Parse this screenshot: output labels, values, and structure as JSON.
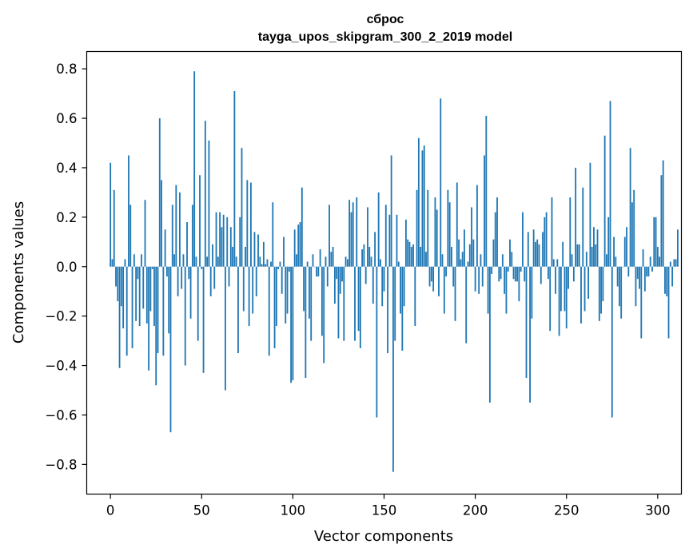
{
  "chart_data": {
    "type": "bar",
    "title": "сброс",
    "subtitle": "tayga_upos_skipgram_300_2_2019 model",
    "xlabel": "Vector components",
    "ylabel": "Components values",
    "xlim": [
      -13,
      313
    ],
    "ylim": [
      -0.92,
      0.87
    ],
    "xticks": [
      0,
      50,
      100,
      150,
      200,
      250,
      300
    ],
    "yticks": [
      -0.8,
      -0.6,
      -0.4,
      -0.2,
      0.0,
      0.2,
      0.4,
      0.6,
      0.8
    ],
    "ytick_labels": [
      "−0.8",
      "−0.6",
      "−0.4",
      "−0.2",
      "0.0",
      "0.2",
      "0.4",
      "0.6",
      "0.8"
    ],
    "bar_color": "#1f77b4",
    "grid": false,
    "values": [
      0.42,
      0.03,
      0.31,
      -0.08,
      -0.14,
      -0.41,
      -0.16,
      -0.25,
      0.03,
      -0.36,
      0.45,
      0.25,
      -0.33,
      0.05,
      -0.22,
      -0.05,
      -0.24,
      0.05,
      -0.17,
      0.27,
      -0.23,
      -0.42,
      -0.18,
      -0.01,
      -0.24,
      -0.48,
      -0.35,
      0.6,
      0.35,
      -0.36,
      0.15,
      -0.04,
      -0.27,
      -0.67,
      0.25,
      0.05,
      0.33,
      -0.12,
      0.3,
      -0.09,
      0.05,
      -0.4,
      0.18,
      -0.05,
      -0.21,
      0.25,
      0.79,
      0.04,
      -0.3,
      0.37,
      -0.01,
      -0.43,
      0.59,
      0.04,
      0.51,
      -0.12,
      0.09,
      -0.09,
      0.22,
      0.04,
      0.22,
      0.16,
      0.21,
      -0.5,
      0.2,
      -0.08,
      0.16,
      0.08,
      0.71,
      0.04,
      -0.35,
      0.2,
      0.48,
      -0.18,
      0.08,
      0.35,
      -0.24,
      0.34,
      -0.19,
      0.14,
      -0.12,
      0.13,
      0.04,
      0.01,
      0.1,
      0.01,
      0.03,
      -0.36,
      0.02,
      0.26,
      -0.33,
      -0.24,
      -0.01,
      0.02,
      -0.11,
      0.12,
      -0.23,
      -0.19,
      -0.02,
      -0.47,
      -0.46,
      0.15,
      0.05,
      0.17,
      0.18,
      0.32,
      -0.18,
      -0.45,
      0.02,
      -0.21,
      -0.3,
      0.05,
      0.0,
      -0.04,
      -0.04,
      0.07,
      -0.28,
      -0.39,
      0.04,
      -0.08,
      0.25,
      0.06,
      0.08,
      -0.15,
      -0.05,
      -0.29,
      -0.11,
      -0.06,
      -0.3,
      0.04,
      0.03,
      0.27,
      0.22,
      0.26,
      -0.3,
      0.28,
      -0.26,
      -0.33,
      0.07,
      0.09,
      -0.07,
      0.24,
      0.08,
      0.04,
      -0.15,
      0.14,
      -0.61,
      0.3,
      0.03,
      -0.16,
      -0.1,
      0.25,
      -0.35,
      0.21,
      0.45,
      -0.83,
      -0.3,
      0.21,
      0.02,
      -0.19,
      -0.34,
      -0.16,
      0.19,
      0.11,
      0.1,
      0.08,
      0.09,
      -0.24,
      0.31,
      0.52,
      0.08,
      0.47,
      0.49,
      0.06,
      0.31,
      -0.08,
      -0.06,
      -0.1,
      0.28,
      0.23,
      -0.12,
      0.68,
      0.05,
      -0.19,
      -0.04,
      0.31,
      0.26,
      0.08,
      -0.08,
      -0.22,
      0.34,
      0.11,
      0.03,
      0.06,
      0.15,
      -0.31,
      0.02,
      0.09,
      0.24,
      0.11,
      -0.1,
      0.33,
      -0.11,
      0.05,
      -0.08,
      0.45,
      0.61,
      -0.19,
      -0.55,
      -0.03,
      0.11,
      0.22,
      0.28,
      -0.06,
      -0.05,
      0.05,
      -0.11,
      -0.19,
      -0.02,
      0.11,
      0.06,
      -0.05,
      -0.06,
      -0.06,
      -0.14,
      -0.02,
      0.22,
      -0.06,
      -0.45,
      0.14,
      -0.55,
      -0.21,
      0.15,
      0.1,
      0.11,
      0.09,
      -0.07,
      0.14,
      0.2,
      0.22,
      -0.05,
      -0.26,
      0.28,
      0.03,
      -0.11,
      0.03,
      -0.28,
      -0.18,
      0.1,
      -0.18,
      -0.25,
      -0.09,
      0.28,
      0.05,
      -0.06,
      0.4,
      0.09,
      0.09,
      -0.23,
      0.32,
      -0.18,
      0.06,
      -0.13,
      0.42,
      0.08,
      0.16,
      0.09,
      0.15,
      -0.22,
      -0.19,
      -0.14,
      0.53,
      0.05,
      0.2,
      0.67,
      -0.61,
      0.12,
      0.04,
      -0.08,
      -0.16,
      -0.21,
      0.0,
      0.12,
      0.16,
      -0.04,
      0.48,
      0.26,
      0.31,
      -0.16,
      -0.05,
      -0.09,
      -0.29,
      0.07,
      -0.1,
      -0.04,
      -0.04,
      0.04,
      -0.02,
      0.2,
      0.2,
      0.08,
      0.04,
      0.37,
      0.43,
      -0.11,
      -0.12,
      -0.29,
      0.02,
      -0.08,
      0.03,
      0.03,
      0.15
    ]
  }
}
